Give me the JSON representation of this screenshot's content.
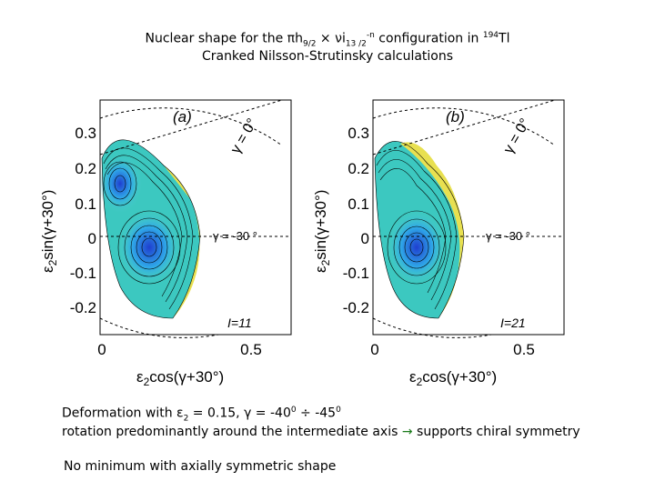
{
  "title": {
    "line1_pre": "Nuclear shape for the ",
    "line1_pi": "π",
    "line1_h": "h",
    "line1_h_sub": "9/2",
    "line1_x": " × ",
    "line1_nu": "ν",
    "line1_i": "i",
    "line1_i_sub": "13 /2",
    "line1_i_sup": "-n",
    "line1_post": " configuration in ",
    "line1_mass": "194",
    "line1_element": "Tl",
    "line2": "Cranked Nilsson-Strutinsky calculations"
  },
  "panels": [
    {
      "label": "(a)",
      "spin": "I=11",
      "gamma0": "γ = 0°",
      "gamma30": "γ = -30 °",
      "yticks": [
        "0.3",
        "0.2",
        "0.1",
        "0",
        "-0.1",
        "-0.2"
      ],
      "xticks": [
        "0",
        "0.5"
      ],
      "ylabel_main": "ε",
      "ylabel_sub": "2",
      "ylabel_rest": "sin(γ+30°)",
      "xlabel_main": "ε",
      "xlabel_sub": "2",
      "xlabel_rest": "cos(γ+30°)"
    },
    {
      "label": "(b)",
      "spin": "I=21",
      "gamma0": "γ = 0°",
      "gamma30": "γ = -30 °",
      "yticks": [
        "0.3",
        "0.2",
        "0.1",
        "0",
        "-0.1",
        "-0.2"
      ],
      "xticks": [
        "0",
        "0.5"
      ],
      "ylabel_main": "ε",
      "ylabel_sub": "2",
      "ylabel_rest": "sin(γ+30°)",
      "xlabel_main": "ε",
      "xlabel_sub": "2",
      "xlabel_rest": "cos(γ+30°)"
    }
  ],
  "notes": {
    "line1_pre": "Deformation with ",
    "line1_eps": "ε",
    "line1_eps_sub": "2",
    "line1_mid": " = 0.15, γ = -40",
    "line1_sup1": "0",
    "line1_div": " ÷ -45",
    "line1_sup2": "0",
    "line2_pre": "rotation predominantly around the intermediate axis ",
    "line2_arrow": "→",
    "line2_post": " supports chiral symmetry",
    "line3": "No minimum with axially symmetric  shape"
  },
  "colors": {
    "contour": "#000000",
    "min_deep": "#1f3fd0",
    "min_mid": "#2fa8e8",
    "valley": "#4fd0c8",
    "ridge": "#f0e050"
  }
}
